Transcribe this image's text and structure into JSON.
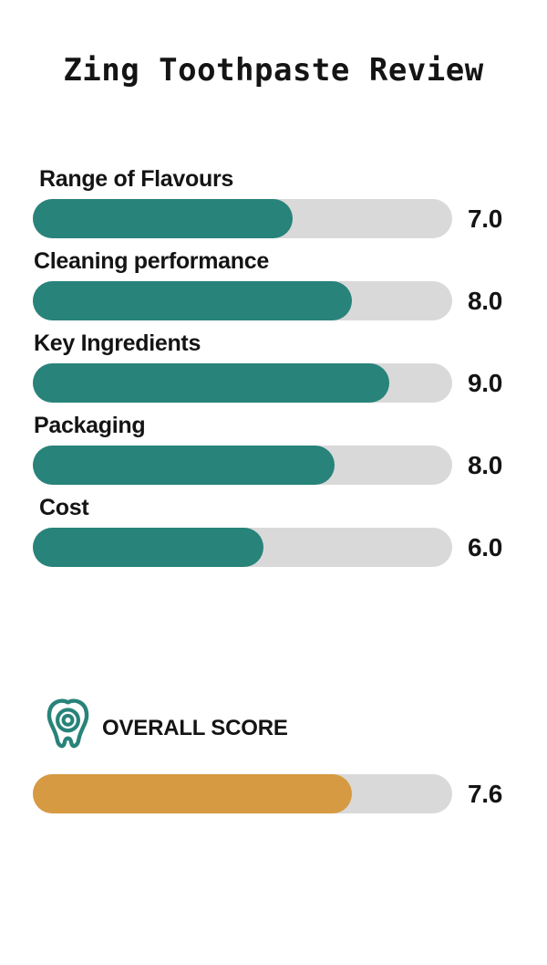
{
  "title": "Zing Toothpaste Review",
  "colors": {
    "teal": "#28837A",
    "orange": "#D69A43",
    "track": "#D9D9D9",
    "text": "#141414"
  },
  "chart_data": {
    "type": "bar",
    "orientation": "horizontal",
    "title": "Zing Toothpaste Review",
    "value_range": [
      0,
      10
    ],
    "grid": false,
    "legend": false,
    "categories": [
      "Range of Flavours",
      "Cleaning performance",
      "Key Ingredients",
      "Packaging",
      "Cost"
    ],
    "values": [
      7.0,
      8.0,
      9.0,
      8.0,
      6.0
    ],
    "rows": [
      {
        "label": "Range of Flavours",
        "score": "7.0",
        "fill_pct": 62
      },
      {
        "label": "Cleaning performance",
        "score": "8.0",
        "fill_pct": 76
      },
      {
        "label": "Key Ingredients",
        "score": "9.0",
        "fill_pct": 85
      },
      {
        "label": "Packaging",
        "score": "8.0",
        "fill_pct": 72
      },
      {
        "label": "Cost",
        "score": "6.0",
        "fill_pct": 55
      }
    ],
    "overall": {
      "label": "OVERALL SCORE",
      "score": "7.6",
      "fill_pct": 76,
      "icon": "tooth-icon"
    }
  }
}
